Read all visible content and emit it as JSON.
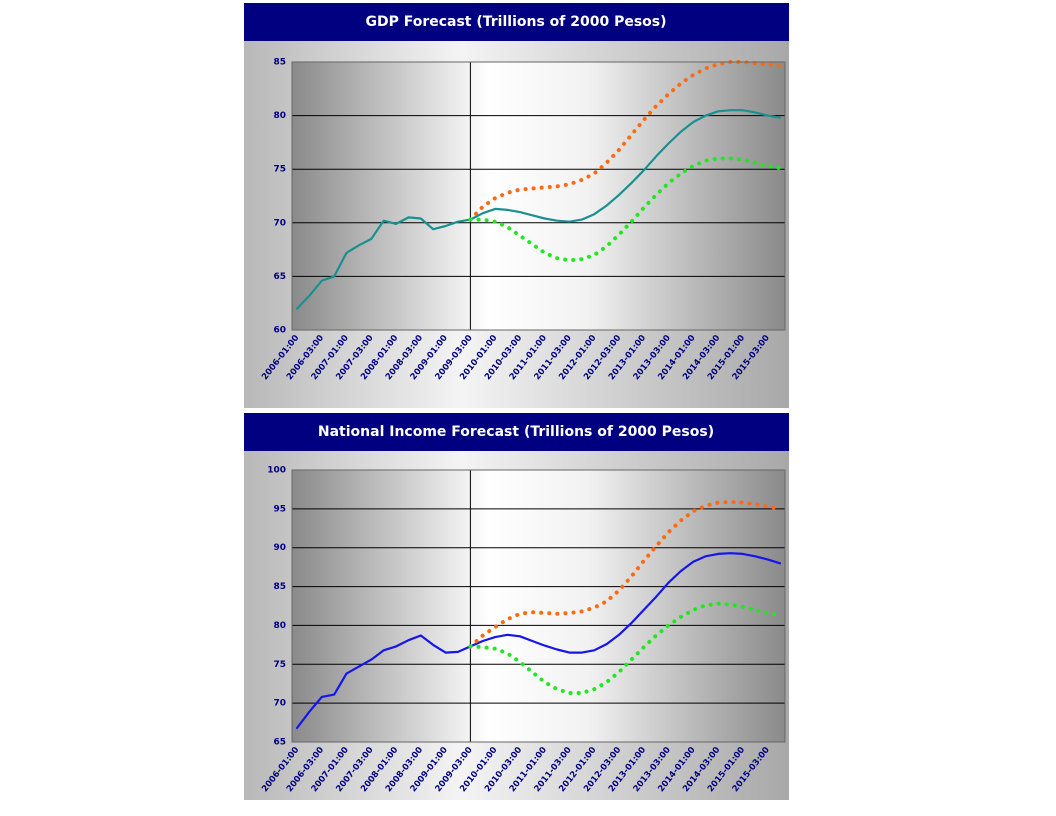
{
  "chart_data": [
    {
      "type": "line",
      "title": "GDP Forecast (Trillions of 2000 Pesos)",
      "categories": [
        "2006-01:00",
        null,
        "2006-03:00",
        null,
        "2007-01:00",
        null,
        "2007-03:00",
        null,
        "2008-01:00",
        null,
        "2008-03:00",
        null,
        "2009-01:00",
        null,
        "2009-03:00",
        null,
        "2010-01:00",
        null,
        "2010-03:00",
        null,
        "2011-01:00",
        null,
        "2011-03:00",
        null,
        "2012-01:00",
        null,
        "2012-03:00",
        null,
        "2013-01:00",
        null,
        "2013-03:00",
        null,
        "2014-01:00",
        null,
        "2014-03:00",
        null,
        "2015-01:00",
        null,
        "2015-03:00",
        null
      ],
      "series": [
        {
          "color": "#1a9090",
          "dash": false,
          "values": [
            62,
            63.2,
            64.6,
            65,
            67.2,
            67.9,
            68.5,
            70.2,
            69.9,
            70.5,
            70.4,
            69.4,
            69.7,
            70.1,
            70.3,
            70.9,
            71.3,
            71.2,
            71,
            70.7,
            70.4,
            70.2,
            70.1,
            70.3,
            70.8,
            71.6,
            72.6,
            73.7,
            74.9,
            76.2,
            77.4,
            78.5,
            79.4,
            80,
            80.4,
            80.5,
            80.5,
            80.3,
            80,
            79.8
          ]
        },
        {
          "color": "#ff6a10",
          "dash": true,
          "values": [
            null,
            null,
            null,
            null,
            null,
            null,
            null,
            null,
            null,
            null,
            null,
            null,
            null,
            null,
            70.3,
            71.5,
            72.3,
            72.8,
            73.1,
            73.2,
            73.3,
            73.4,
            73.6,
            74,
            74.6,
            75.6,
            76.8,
            78.2,
            79.6,
            80.9,
            82,
            83,
            83.8,
            84.4,
            84.8,
            85,
            85,
            84.9,
            84.8,
            84.6
          ]
        },
        {
          "color": "#22e622",
          "dash": true,
          "values": [
            null,
            null,
            null,
            null,
            null,
            null,
            null,
            null,
            null,
            null,
            null,
            null,
            null,
            null,
            70.3,
            70.3,
            70.1,
            69.6,
            68.8,
            68,
            67.2,
            66.7,
            66.5,
            66.6,
            67,
            67.8,
            68.9,
            70.1,
            71.4,
            72.6,
            73.7,
            74.6,
            75.3,
            75.8,
            76,
            76,
            75.9,
            75.6,
            75.3,
            75.1
          ]
        }
      ],
      "ylim": [
        60,
        85
      ],
      "yticks": [
        60,
        65,
        70,
        75,
        80,
        85
      ],
      "grid": true
    },
    {
      "type": "line",
      "title": "National Income Forecast (Trillions of 2000 Pesos)",
      "categories": [
        "2006-01:00",
        null,
        "2006-03:00",
        null,
        "2007-01:00",
        null,
        "2007-03:00",
        null,
        "2008-01:00",
        null,
        "2008-03:00",
        null,
        "2009-01:00",
        null,
        "2009-03:00",
        null,
        "2010-01:00",
        null,
        "2010-03:00",
        null,
        "2011-01:00",
        null,
        "2011-03:00",
        null,
        "2012-01:00",
        null,
        "2012-03:00",
        null,
        "2013-01:00",
        null,
        "2013-03:00",
        null,
        "2014-01:00",
        null,
        "2014-03:00",
        null,
        "2015-01:00",
        null,
        "2015-03:00",
        null
      ],
      "series": [
        {
          "color": "#1515ee",
          "dash": false,
          "values": [
            66.8,
            68.9,
            70.8,
            71.1,
            73.8,
            74.7,
            75.6,
            76.8,
            77.3,
            78.1,
            78.7,
            77.5,
            76.5,
            76.6,
            77.3,
            78,
            78.5,
            78.8,
            78.6,
            78,
            77.4,
            76.9,
            76.5,
            76.5,
            76.8,
            77.6,
            78.8,
            80.3,
            82,
            83.7,
            85.5,
            87,
            88.2,
            88.9,
            89.2,
            89.3,
            89.2,
            88.9,
            88.5,
            88
          ]
        },
        {
          "color": "#ff6a10",
          "dash": true,
          "values": [
            null,
            null,
            null,
            null,
            null,
            null,
            null,
            null,
            null,
            null,
            null,
            null,
            null,
            null,
            77.3,
            78.7,
            79.8,
            80.8,
            81.5,
            81.7,
            81.6,
            81.5,
            81.6,
            81.8,
            82.3,
            83.1,
            84.5,
            86.3,
            88.3,
            90.2,
            92,
            93.5,
            94.7,
            95.4,
            95.8,
            95.9,
            95.8,
            95.6,
            95.3,
            95
          ]
        },
        {
          "color": "#22e622",
          "dash": true,
          "values": [
            null,
            null,
            null,
            null,
            null,
            null,
            null,
            null,
            null,
            null,
            null,
            null,
            null,
            null,
            77.3,
            77.2,
            77,
            76.4,
            75.3,
            74,
            72.7,
            71.8,
            71.3,
            71.3,
            71.8,
            72.7,
            74,
            75.6,
            77.2,
            78.7,
            80,
            81.1,
            82,
            82.6,
            82.8,
            82.7,
            82.4,
            82,
            81.6,
            81.3
          ]
        }
      ],
      "ylim": [
        65,
        100
      ],
      "yticks": [
        65,
        70,
        75,
        80,
        85,
        90,
        95,
        100
      ],
      "grid": true
    }
  ]
}
